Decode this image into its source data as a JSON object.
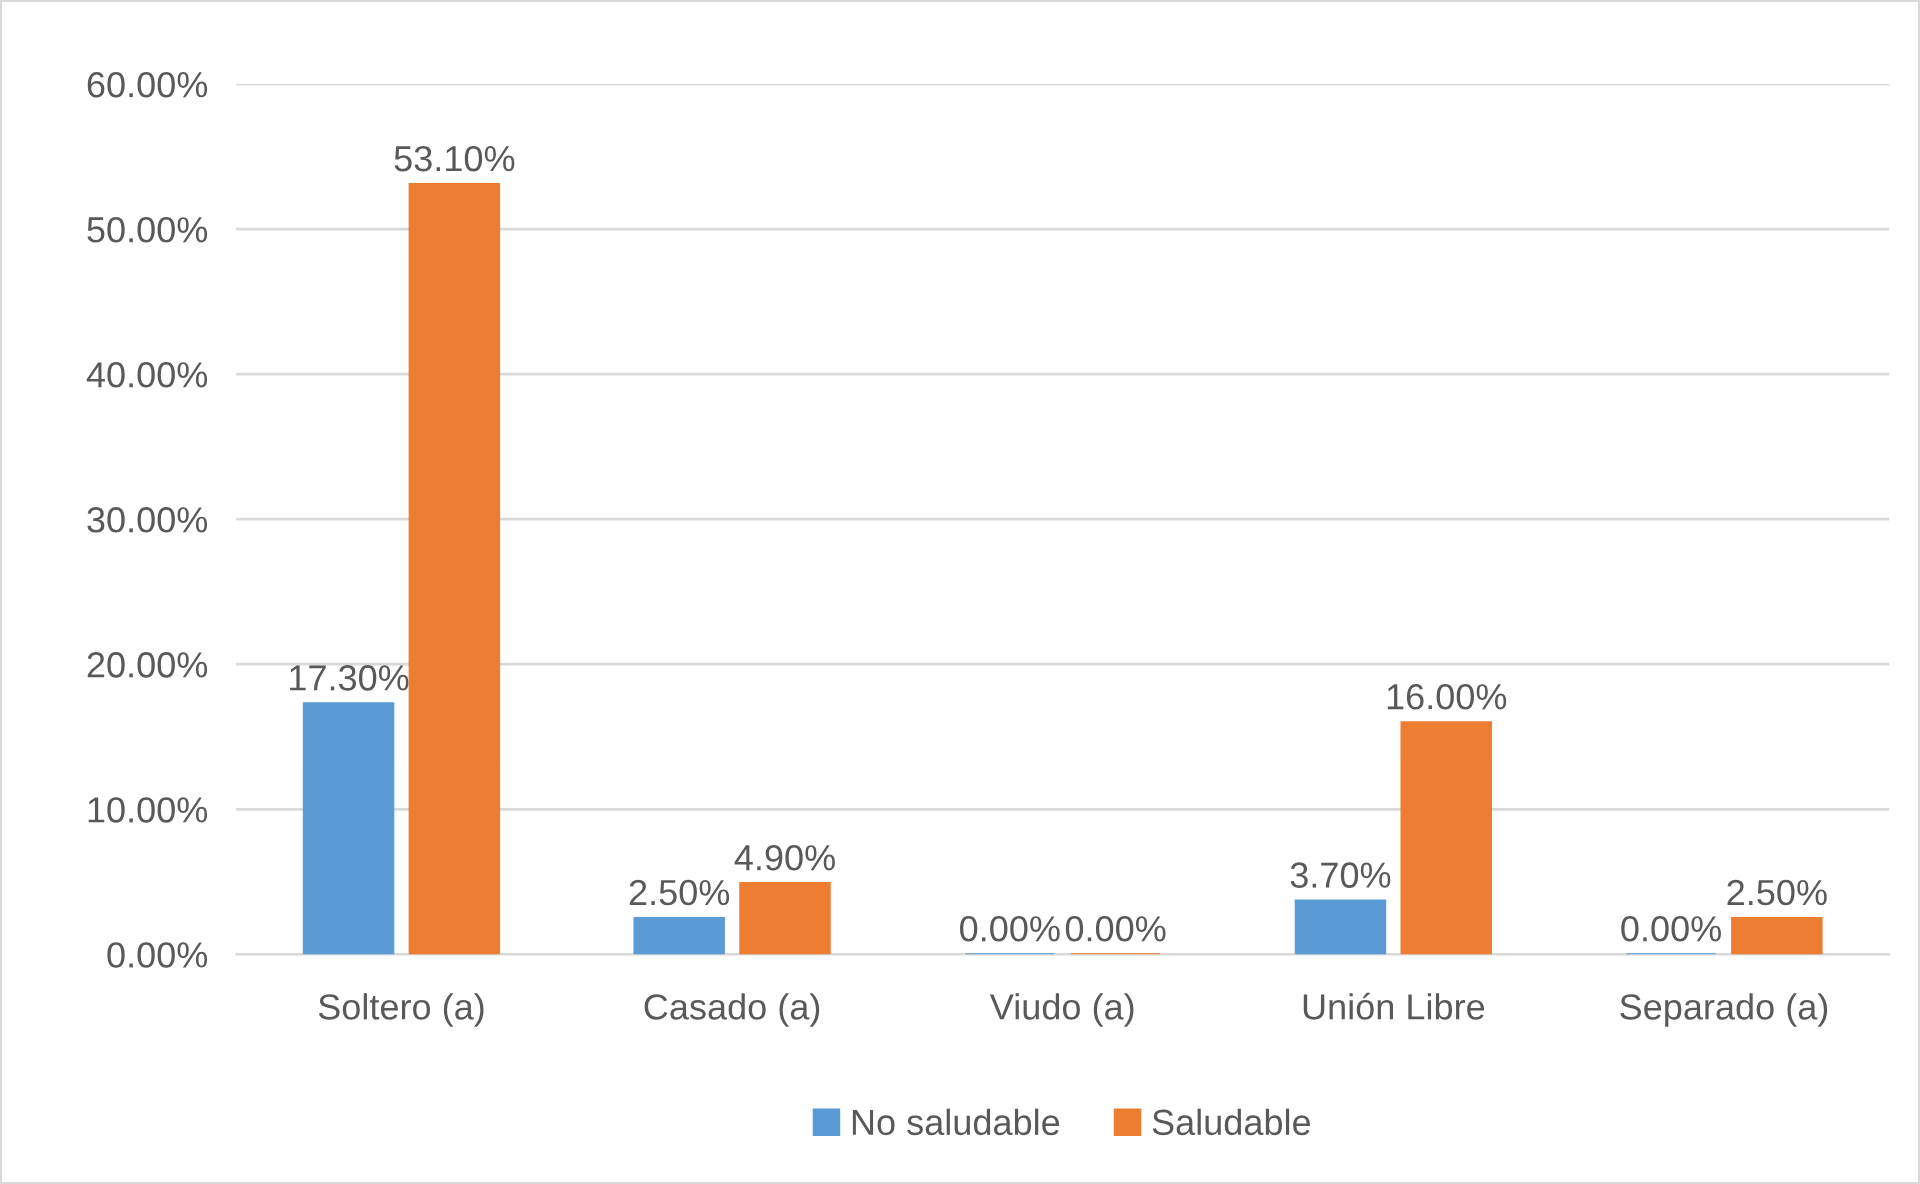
{
  "chart_data": {
    "type": "bar",
    "categories": [
      "Soltero (a)",
      "Casado (a)",
      "Viudo (a)",
      "Unión Libre",
      "Separado (a)"
    ],
    "series": [
      {
        "name": "No saludable",
        "color": "#5b9bd5",
        "values": [
          17.3,
          2.5,
          0,
          3.7,
          0
        ],
        "value_labels": [
          "17.30%",
          "2.50%",
          "0.00%",
          "3.70%",
          "0.00%"
        ]
      },
      {
        "name": "Saludable",
        "color": "#ed7d31",
        "values": [
          53.1,
          4.9,
          0,
          16.0,
          2.5
        ],
        "value_labels": [
          "53.10%",
          "4.90%",
          "0.00%",
          "16.00%",
          "2.50%"
        ]
      }
    ],
    "ylim": [
      0,
      60
    ],
    "yticks": [
      {
        "value": 0,
        "label": "0.00%"
      },
      {
        "value": 10,
        "label": "10.00%"
      },
      {
        "value": 20,
        "label": "20.00%"
      },
      {
        "value": 30,
        "label": "30.00%"
      },
      {
        "value": 40,
        "label": "40.00%"
      },
      {
        "value": 50,
        "label": "50.00%"
      },
      {
        "value": 60,
        "label": "60.00%"
      }
    ],
    "grid": "y",
    "legend": "bottom"
  }
}
